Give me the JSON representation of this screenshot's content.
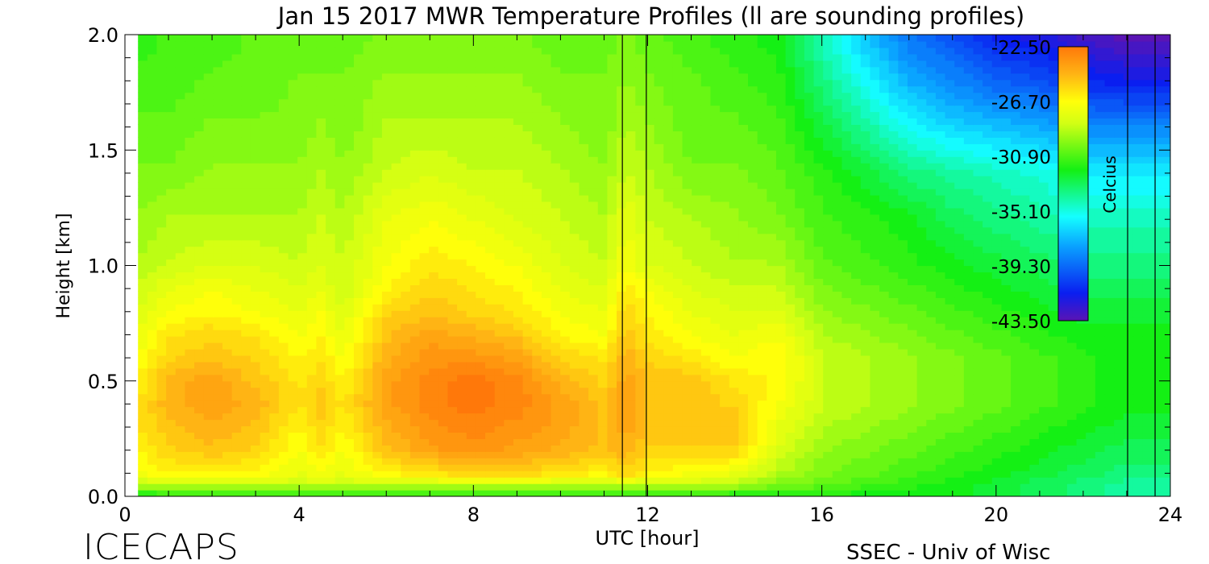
{
  "chart_data": {
    "type": "heatmap",
    "title": "Jan 15 2017 MWR Temperature Profiles (ll are sounding profiles)",
    "xlabel": "UTC [hour]",
    "ylabel": "Height [km]",
    "xlim": [
      0,
      24
    ],
    "ylim": [
      0,
      2
    ],
    "xticks": [
      "0",
      "4",
      "8",
      "12",
      "16",
      "20",
      "24"
    ],
    "yticks": [
      "0.0",
      "0.5",
      "1.0",
      "1.5",
      "2.0"
    ],
    "colorbar": {
      "label": "Celcius",
      "ticks": [
        "-22.50",
        "-26.70",
        "-30.90",
        "-35.10",
        "-39.30",
        "-43.50"
      ],
      "range": [
        -43.5,
        -22.5
      ]
    },
    "sounding_lines_utc": [
      11.42,
      11.97,
      23.02,
      23.65
    ],
    "data_start_utc": 0.3,
    "heights_km": [
      0.0,
      0.05,
      0.1,
      0.2,
      0.3,
      0.4,
      0.5,
      0.6,
      0.7,
      0.8,
      0.9,
      1.0,
      1.2,
      1.4,
      1.6,
      1.8,
      2.0
    ],
    "times_utc": [
      0.3,
      1,
      2,
      3,
      4,
      4.5,
      5,
      6,
      7,
      8,
      9,
      10,
      11,
      11.5,
      12,
      13,
      14,
      15,
      16,
      17,
      18,
      19,
      20,
      21,
      22,
      23,
      24
    ],
    "temperatures_c": [
      [
        -32.5,
        -32.0,
        -32.0,
        -32.0,
        -32.0,
        -32.0,
        -32.0,
        -32.0,
        -32.0,
        -32.0,
        -32.0,
        -32.0,
        -32.0,
        -32.0,
        -32.0,
        -32.0,
        -32.0,
        -32.0,
        -32.0,
        -32.0,
        -32.0,
        -32.0,
        -32.5,
        -33.0,
        -33.5,
        -34.0,
        -34.0
      ],
      [
        -29.0,
        -28.5,
        -28.5,
        -28.5,
        -28.5,
        -28.5,
        -28.5,
        -28.5,
        -28.5,
        -28.5,
        -28.5,
        -28.5,
        -28.5,
        -28.5,
        -28.5,
        -28.5,
        -29.0,
        -30.0,
        -30.5,
        -31.0,
        -31.5,
        -32.0,
        -32.5,
        -33.0,
        -33.5,
        -34.0,
        -34.0
      ],
      [
        -27.0,
        -26.5,
        -26.5,
        -26.5,
        -27.5,
        -27.0,
        -27.5,
        -26.5,
        -26.0,
        -25.5,
        -25.5,
        -26.0,
        -26.5,
        -25.5,
        -26.5,
        -27.0,
        -27.5,
        -29.0,
        -30.0,
        -30.5,
        -31.0,
        -31.5,
        -32.0,
        -32.5,
        -33.0,
        -33.5,
        -33.5
      ],
      [
        -26.5,
        -25.5,
        -25.0,
        -25.5,
        -27.0,
        -26.0,
        -27.0,
        -25.0,
        -24.0,
        -23.5,
        -24.0,
        -24.5,
        -25.0,
        -24.5,
        -25.5,
        -25.5,
        -25.5,
        -28.0,
        -29.5,
        -30.0,
        -30.5,
        -31.0,
        -31.5,
        -32.0,
        -32.5,
        -33.0,
        -33.0
      ],
      [
        -26.0,
        -25.0,
        -24.5,
        -25.0,
        -26.5,
        -25.5,
        -26.5,
        -24.5,
        -23.5,
        -23.0,
        -23.5,
        -24.0,
        -25.0,
        -24.0,
        -25.0,
        -25.0,
        -25.0,
        -27.5,
        -29.0,
        -29.5,
        -30.0,
        -30.5,
        -31.0,
        -31.5,
        -32.0,
        -32.5,
        -32.5
      ],
      [
        -26.0,
        -24.5,
        -24.0,
        -24.5,
        -26.0,
        -25.0,
        -26.0,
        -24.0,
        -23.0,
        -22.5,
        -23.0,
        -24.0,
        -25.0,
        -24.0,
        -25.0,
        -25.0,
        -25.5,
        -27.0,
        -28.5,
        -29.0,
        -29.5,
        -30.0,
        -30.5,
        -31.0,
        -31.5,
        -32.0,
        -32.0
      ],
      [
        -26.5,
        -24.5,
        -24.0,
        -25.0,
        -26.0,
        -25.5,
        -26.5,
        -24.0,
        -23.0,
        -22.5,
        -23.0,
        -24.5,
        -25.5,
        -24.0,
        -25.0,
        -25.0,
        -26.0,
        -26.5,
        -28.5,
        -29.0,
        -29.5,
        -30.0,
        -30.5,
        -31.0,
        -31.5,
        -32.0,
        -32.0
      ],
      [
        -27.0,
        -25.5,
        -25.0,
        -25.5,
        -26.5,
        -26.0,
        -27.0,
        -24.5,
        -23.5,
        -23.5,
        -24.0,
        -25.5,
        -26.0,
        -24.5,
        -25.5,
        -26.0,
        -27.0,
        -26.5,
        -28.5,
        -29.0,
        -29.5,
        -30.0,
        -30.5,
        -31.0,
        -31.5,
        -32.0,
        -32.0
      ],
      [
        -27.5,
        -26.0,
        -25.5,
        -26.0,
        -27.0,
        -26.5,
        -27.5,
        -25.0,
        -24.0,
        -24.5,
        -25.0,
        -26.5,
        -27.0,
        -25.0,
        -26.0,
        -27.0,
        -27.5,
        -27.0,
        -29.0,
        -29.5,
        -30.0,
        -30.5,
        -31.0,
        -31.5,
        -32.0,
        -32.0,
        -32.0
      ],
      [
        -28.0,
        -27.0,
        -26.5,
        -27.0,
        -27.5,
        -27.0,
        -28.0,
        -25.5,
        -25.0,
        -25.5,
        -26.0,
        -27.0,
        -27.5,
        -25.5,
        -26.5,
        -27.5,
        -28.0,
        -28.0,
        -29.5,
        -30.0,
        -30.5,
        -31.0,
        -31.5,
        -32.0,
        -32.5,
        -32.5,
        -32.5
      ],
      [
        -28.5,
        -27.5,
        -27.0,
        -27.5,
        -28.0,
        -27.5,
        -28.5,
        -26.5,
        -25.5,
        -26.0,
        -26.5,
        -27.5,
        -28.0,
        -26.0,
        -27.0,
        -28.0,
        -28.5,
        -28.5,
        -30.0,
        -30.5,
        -31.0,
        -31.5,
        -32.0,
        -32.5,
        -33.0,
        -33.0,
        -33.0
      ],
      [
        -29.0,
        -28.5,
        -28.0,
        -28.0,
        -28.5,
        -28.0,
        -28.5,
        -27.0,
        -26.0,
        -26.5,
        -27.0,
        -28.0,
        -28.5,
        -27.0,
        -28.0,
        -28.5,
        -29.0,
        -29.0,
        -30.5,
        -31.0,
        -31.5,
        -32.0,
        -32.5,
        -33.0,
        -33.5,
        -33.5,
        -33.5
      ],
      [
        -29.5,
        -29.0,
        -29.0,
        -29.0,
        -29.0,
        -28.5,
        -29.0,
        -27.5,
        -27.0,
        -27.5,
        -28.0,
        -28.5,
        -29.0,
        -27.5,
        -28.5,
        -29.0,
        -29.5,
        -30.0,
        -31.0,
        -31.5,
        -32.0,
        -33.0,
        -33.5,
        -34.0,
        -34.5,
        -34.5,
        -34.5
      ],
      [
        -30.0,
        -30.0,
        -29.5,
        -29.5,
        -29.5,
        -29.0,
        -29.5,
        -28.5,
        -28.0,
        -28.5,
        -28.5,
        -29.0,
        -29.5,
        -28.5,
        -29.0,
        -30.0,
        -30.0,
        -30.5,
        -31.5,
        -32.5,
        -33.5,
        -34.0,
        -34.5,
        -35.0,
        -36.0,
        -36.0,
        -36.0
      ],
      [
        -30.5,
        -30.5,
        -30.0,
        -30.0,
        -30.0,
        -29.5,
        -30.0,
        -29.0,
        -29.0,
        -29.0,
        -29.0,
        -29.5,
        -30.0,
        -29.0,
        -29.5,
        -30.5,
        -30.5,
        -31.0,
        -32.5,
        -34.0,
        -35.5,
        -36.5,
        -37.0,
        -37.5,
        -38.5,
        -38.5,
        -38.5
      ],
      [
        -31.0,
        -31.0,
        -30.5,
        -30.5,
        -30.0,
        -30.0,
        -30.0,
        -29.5,
        -29.5,
        -29.5,
        -29.5,
        -30.0,
        -30.0,
        -29.5,
        -30.0,
        -30.5,
        -31.0,
        -31.5,
        -33.5,
        -35.5,
        -37.5,
        -38.5,
        -39.5,
        -40.0,
        -41.0,
        -41.5,
        -41.5
      ],
      [
        -31.5,
        -31.0,
        -31.0,
        -30.5,
        -30.5,
        -30.5,
        -30.5,
        -30.0,
        -30.0,
        -30.0,
        -30.0,
        -30.5,
        -30.5,
        -30.0,
        -30.5,
        -31.0,
        -31.5,
        -32.0,
        -34.5,
        -37.0,
        -39.0,
        -40.0,
        -41.5,
        -42.0,
        -43.0,
        -43.5,
        -43.5
      ]
    ]
  },
  "footer": {
    "brand": "ICECAPS",
    "credit": "SSEC - Univ of Wisc"
  }
}
